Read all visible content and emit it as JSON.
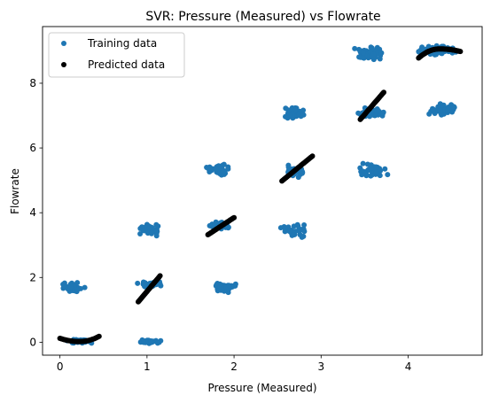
{
  "chart_data": {
    "type": "scatter",
    "title": "SVR: Pressure (Measured) vs Flowrate",
    "xlabel": "Pressure (Measured)",
    "ylabel": "Flowrate",
    "xlim": [
      -0.2,
      4.85
    ],
    "ylim": [
      -0.4,
      9.75
    ],
    "xticks": [
      0,
      1,
      2,
      3,
      4
    ],
    "yticks": [
      0,
      2,
      4,
      6,
      8
    ],
    "legend_position": "top-left",
    "series": [
      {
        "name": "Training data",
        "color": "#1f77b4",
        "clusters": [
          {
            "x": [
              0.0,
              0.45
            ],
            "y": [
              -0.05,
              0.1
            ],
            "n": 55
          },
          {
            "x": [
              0.0,
              0.3
            ],
            "y": [
              1.5,
              1.9
            ],
            "n": 40
          },
          {
            "x": [
              0.85,
              1.2
            ],
            "y": [
              -0.05,
              0.08
            ],
            "n": 30
          },
          {
            "x": [
              0.85,
              1.2
            ],
            "y": [
              1.7,
              1.9
            ],
            "n": 35
          },
          {
            "x": [
              0.85,
              1.2
            ],
            "y": [
              3.25,
              3.75
            ],
            "n": 40
          },
          {
            "x": [
              1.7,
              2.05
            ],
            "y": [
              1.5,
              1.9
            ],
            "n": 45
          },
          {
            "x": [
              1.7,
              2.0
            ],
            "y": [
              3.45,
              3.8
            ],
            "n": 35
          },
          {
            "x": [
              1.65,
              2.0
            ],
            "y": [
              5.1,
              5.55
            ],
            "n": 45
          },
          {
            "x": [
              2.5,
              2.9
            ],
            "y": [
              3.2,
              3.7
            ],
            "n": 35
          },
          {
            "x": [
              2.55,
              2.85
            ],
            "y": [
              5.0,
              5.5
            ],
            "n": 40
          },
          {
            "x": [
              2.5,
              2.85
            ],
            "y": [
              6.8,
              7.3
            ],
            "n": 45
          },
          {
            "x": [
              3.35,
              3.8
            ],
            "y": [
              5.0,
              5.6
            ],
            "n": 45
          },
          {
            "x": [
              3.35,
              3.8
            ],
            "y": [
              6.9,
              7.3
            ],
            "n": 35
          },
          {
            "x": [
              3.35,
              3.8
            ],
            "y": [
              8.6,
              9.2
            ],
            "n": 50
          },
          {
            "x": [
              4.2,
              4.6
            ],
            "y": [
              6.9,
              7.4
            ],
            "n": 45
          },
          {
            "x": [
              4.05,
              4.6
            ],
            "y": [
              8.85,
              9.2
            ],
            "n": 90
          }
        ]
      },
      {
        "name": "Predicted data",
        "color": "#000000",
        "curves": [
          {
            "x": [
              0.0,
              0.45
            ],
            "y": [
              0.12,
              0.18
            ],
            "kind": "u",
            "min": 0.02,
            "n": 45
          },
          {
            "x": [
              0.9,
              1.15
            ],
            "y": [
              1.25,
              2.05
            ],
            "kind": "line",
            "n": 30
          },
          {
            "x": [
              1.7,
              2.0
            ],
            "y": [
              3.32,
              3.85
            ],
            "kind": "line",
            "n": 30
          },
          {
            "x": [
              2.55,
              2.9
            ],
            "y": [
              4.98,
              5.75
            ],
            "kind": "line",
            "n": 30
          },
          {
            "x": [
              3.45,
              3.72
            ],
            "y": [
              6.88,
              7.72
            ],
            "kind": "line",
            "n": 30
          },
          {
            "x": [
              4.12,
              4.6
            ],
            "y": [
              8.78,
              8.98
            ],
            "kind": "cap",
            "max": 9.06,
            "n": 60
          }
        ]
      }
    ]
  }
}
